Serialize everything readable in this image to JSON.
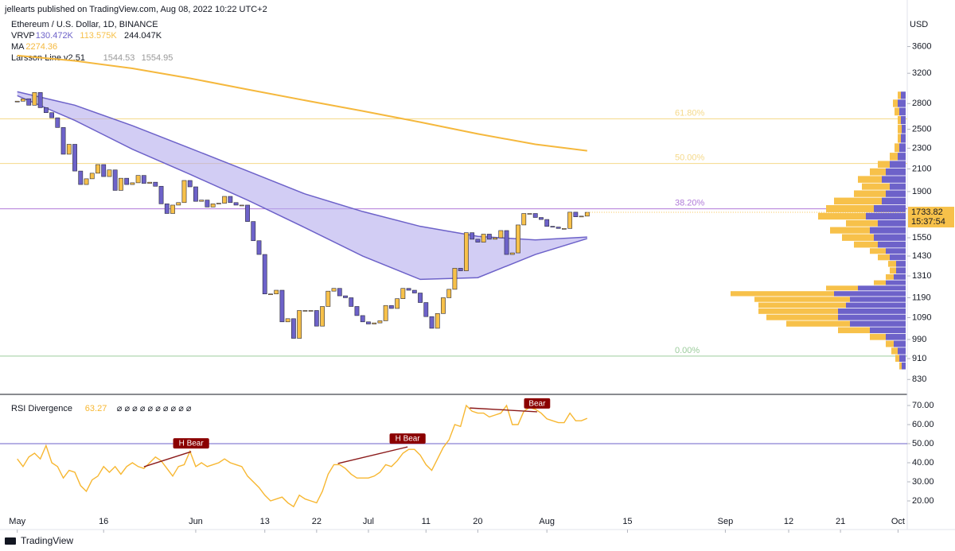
{
  "header": {
    "publisher": "jellearts published on TradingView.com, Aug 08, 2022 10:22 UTC+2"
  },
  "footer": {
    "brand": "TradingView"
  },
  "chart_data": [
    {
      "type": "candlestick",
      "title": "Ethereum / U.S. Dollar, 1D, BINANCE",
      "currency": "USD",
      "log_scale": true,
      "ylim": [
        780,
        4420
      ],
      "yticks": [
        3600,
        3200,
        2800,
        2500,
        2300,
        2100,
        1900,
        1550,
        1430,
        1310,
        1190,
        1090,
        990,
        910,
        830
      ],
      "xlim": [
        -3,
        154.6
      ],
      "xticks": [
        {
          "value": 0,
          "label": "May"
        },
        {
          "value": 15,
          "label": "16"
        },
        {
          "value": 31,
          "label": "Jun"
        },
        {
          "value": 43,
          "label": "13"
        },
        {
          "value": 52,
          "label": "22"
        },
        {
          "value": 61,
          "label": "Jul"
        },
        {
          "value": 71,
          "label": "11"
        },
        {
          "value": 80,
          "label": "20"
        },
        {
          "value": 92,
          "label": "Aug"
        },
        {
          "value": 106,
          "label": "15"
        },
        {
          "value": 123,
          "label": "Sep"
        },
        {
          "value": 134,
          "label": "12"
        },
        {
          "value": 143,
          "label": "21"
        },
        {
          "value": 153,
          "label": "Oct"
        }
      ],
      "up_color": "#f7c14a",
      "down_color": "#6d62c9",
      "close": [
        2830,
        2860,
        2780,
        2940,
        2750,
        2690,
        2630,
        2520,
        2240,
        2340,
        2080,
        1960,
        2010,
        2060,
        2140,
        2030,
        2090,
        1910,
        2015,
        1960,
        1975,
        2040,
        1970,
        1980,
        1945,
        1800,
        1725,
        1790,
        1810,
        1995,
        1940,
        1820,
        1830,
        1775,
        1800,
        1805,
        1860,
        1810,
        1790,
        1790,
        1665,
        1530,
        1440,
        1210,
        1210,
        1230,
        1070,
        1085,
        995,
        1125,
        1125,
        1125,
        1050,
        1145,
        1225,
        1240,
        1200,
        1190,
        1145,
        1100,
        1070,
        1060,
        1065,
        1075,
        1150,
        1135,
        1185,
        1240,
        1230,
        1215,
        1165,
        1095,
        1040,
        1110,
        1190,
        1235,
        1355,
        1340,
        1585,
        1540,
        1520,
        1575,
        1540,
        1550,
        1600,
        1440,
        1450,
        1640,
        1725,
        1725,
        1695,
        1680,
        1630,
        1625,
        1615,
        1615,
        1735,
        1700,
        1705,
        1733.82
      ],
      "countdown": "15:37:54",
      "vrvp": {
        "name": "VRVP",
        "readouts": [
          "130.472K",
          "113.575K",
          "244.047K"
        ],
        "colors": [
          "#6d62c9",
          "#f7c14a",
          "#131722"
        ]
      },
      "ma": {
        "name": "MA",
        "color": "#f5b83d",
        "x": [
          0,
          10,
          20,
          30,
          40,
          50,
          60,
          70,
          80,
          90,
          99
        ],
        "values": [
          3460,
          3380,
          3270,
          3130,
          2980,
          2840,
          2710,
          2580,
          2450,
          2340,
          2274.36
        ]
      },
      "larsson": {
        "name": "Larsson Line v2.51",
        "color": "#6d62c9",
        "fill": "#b4acec",
        "x": [
          0,
          10,
          20,
          30,
          40,
          50,
          60,
          70,
          80,
          90,
          99
        ],
        "lower": [
          2900,
          2600,
          2290,
          2050,
          1830,
          1620,
          1430,
          1290,
          1300,
          1440,
          1544.53
        ],
        "upper": [
          2950,
          2780,
          2540,
          2300,
          2080,
          1880,
          1740,
          1630,
          1560,
          1535,
          1554.95
        ]
      },
      "fib": [
        {
          "label": "61.80%",
          "price": 2618,
          "color": "#f5d98a"
        },
        {
          "label": "50.00%",
          "price": 2150,
          "color": "#f5d98a"
        },
        {
          "label": "38.20%",
          "price": 1761,
          "color": "#b07ad8"
        },
        {
          "label": "0.00%",
          "price": 920,
          "color": "#9ccc9c"
        }
      ],
      "volume_profile": {
        "xlim": [
          0,
          230
        ],
        "price": [
          880,
          910,
          940,
          970,
          1000,
          1030,
          1060,
          1090,
          1120,
          1150,
          1180,
          1210,
          1240,
          1270,
          1300,
          1340,
          1380,
          1420,
          1460,
          1500,
          1550,
          1600,
          1650,
          1700,
          1760,
          1820,
          1880,
          1940,
          2000,
          2070,
          2140,
          2210,
          2300,
          2400,
          2500,
          2600,
          2700,
          2800,
          2900
        ],
        "down": [
          5,
          8,
          10,
          15,
          25,
          45,
          70,
          85,
          85,
          75,
          70,
          90,
          60,
          25,
          15,
          12,
          12,
          20,
          25,
          35,
          40,
          45,
          35,
          50,
          40,
          30,
          25,
          20,
          30,
          25,
          20,
          10,
          8,
          6,
          5,
          6,
          8,
          10,
          6
        ],
        "up": [
          3,
          5,
          8,
          10,
          20,
          40,
          80,
          90,
          100,
          110,
          120,
          130,
          40,
          15,
          10,
          8,
          10,
          15,
          20,
          30,
          40,
          50,
          40,
          60,
          60,
          60,
          40,
          35,
          30,
          20,
          15,
          10,
          6,
          4,
          5,
          4,
          6,
          6,
          4
        ]
      }
    },
    {
      "type": "line",
      "title": "RSI Divergence",
      "symbols": "⌀ ⌀ ⌀ ⌀ ⌀ ⌀ ⌀ ⌀ ⌀ ⌀",
      "color": "#f7b731",
      "ylim": [
        5,
        75
      ],
      "yticks": [
        {
          "value": 70,
          "label": "70.00"
        },
        {
          "value": 60,
          "label": "60.00"
        },
        {
          "value": 50,
          "label": "50.00"
        },
        {
          "value": 40,
          "label": "40.00"
        },
        {
          "value": 30,
          "label": "30.00"
        },
        {
          "value": 20,
          "label": "20.00"
        }
      ],
      "level": 50,
      "values": [
        42,
        38,
        43,
        45,
        42,
        49,
        40,
        38,
        32,
        36,
        35,
        28,
        25,
        31,
        33,
        38,
        35,
        38,
        34,
        38,
        40,
        38,
        37,
        40,
        43,
        41,
        37,
        33,
        38,
        39,
        46,
        38,
        40,
        38,
        39,
        40,
        42,
        40,
        39,
        38,
        33,
        30,
        27,
        23,
        20,
        21,
        22,
        19,
        17,
        23,
        21,
        20,
        19,
        25,
        34,
        39,
        39,
        37,
        34,
        32,
        32,
        32,
        33,
        35,
        39,
        38,
        41,
        45,
        47,
        47,
        44,
        39,
        36,
        42,
        48,
        52,
        60,
        59,
        70,
        67,
        66,
        66,
        64,
        65,
        66,
        70,
        60,
        60,
        67,
        69,
        68,
        66,
        63,
        62,
        61,
        61,
        66,
        62,
        62,
        63.27
      ],
      "divergences": [
        {
          "label": "H Bear",
          "x": [
            22,
            30.2
          ],
          "y": [
            37.9,
            45.8
          ]
        },
        {
          "label": "H Bear",
          "x": [
            55.7,
            67.8
          ],
          "y": [
            39.6,
            48.3
          ]
        },
        {
          "label": "Bear",
          "x": [
            78.6,
            90.3
          ],
          "y": [
            68.7,
            66.7
          ]
        }
      ]
    }
  ]
}
